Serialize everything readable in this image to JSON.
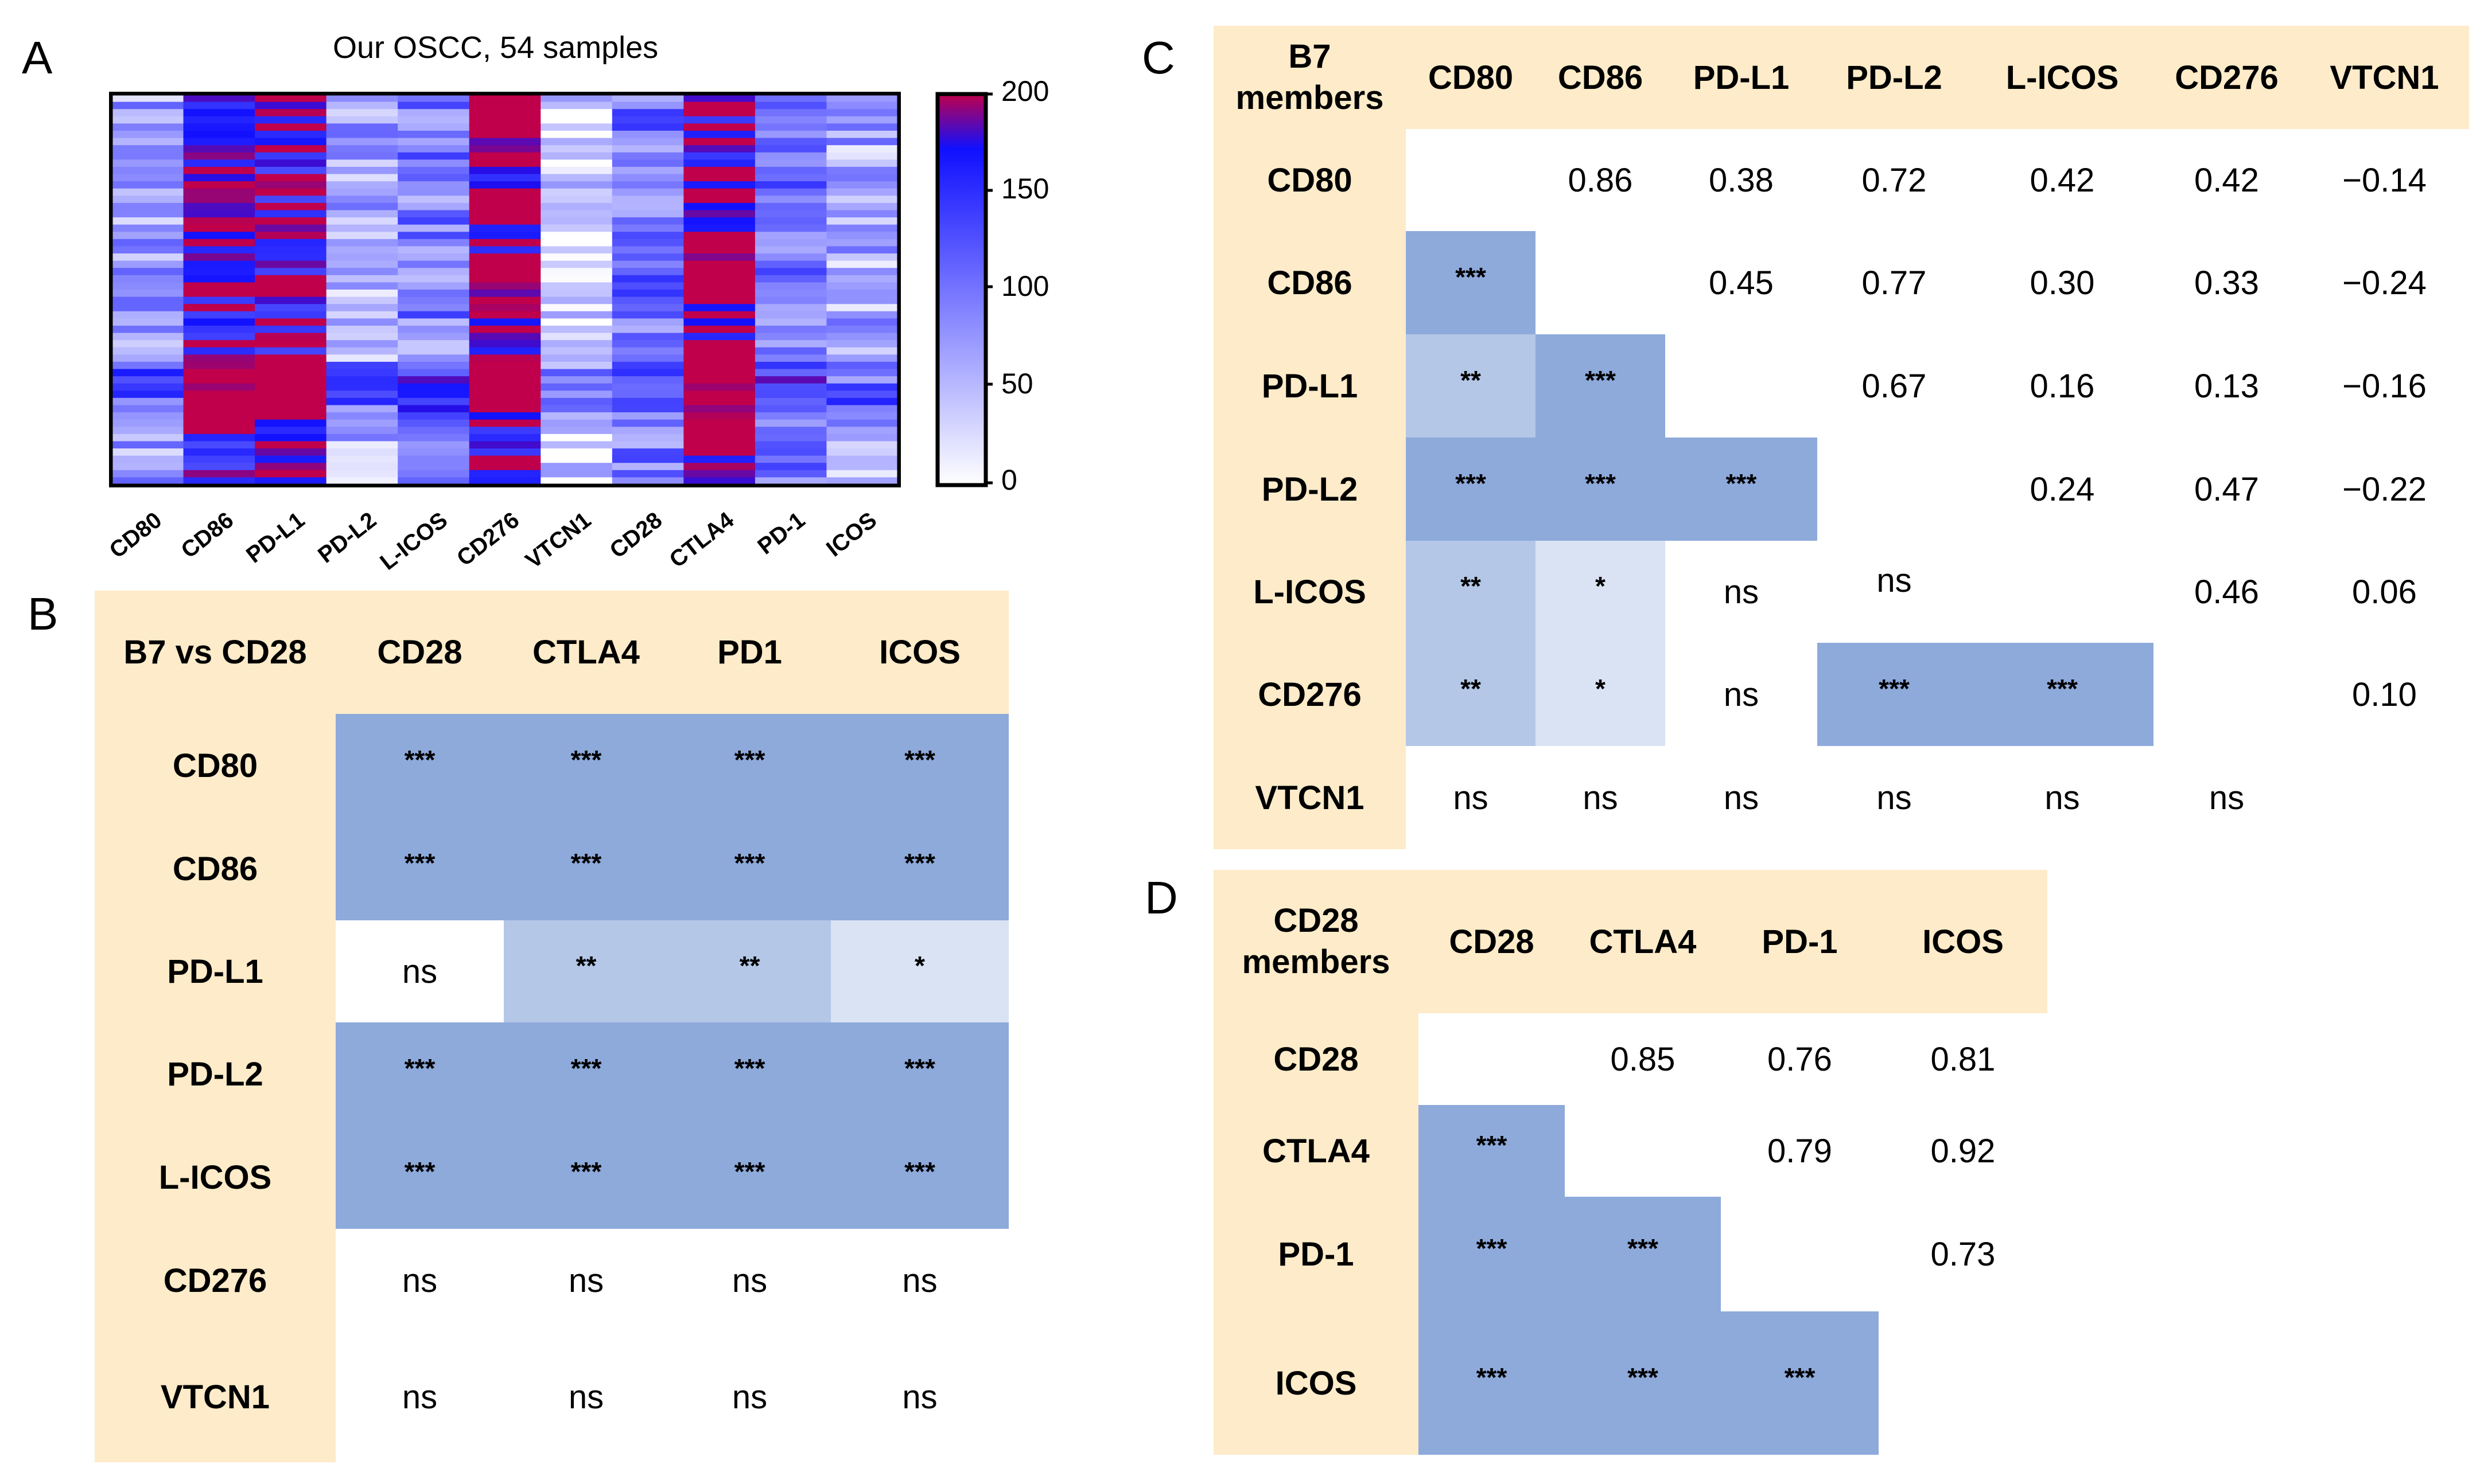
{
  "panels": {
    "a": "A",
    "b": "B",
    "c": "C",
    "d": "D"
  },
  "panel_a": {
    "title": "Our OSCC, 54 samples",
    "genes": [
      "CD80",
      "CD86",
      "PD-L1",
      "PD-L2",
      "L-ICOS",
      "CD276",
      "VTCN1",
      "CD28",
      "CTLA4",
      "PD-1",
      "ICOS"
    ],
    "colorbar": {
      "ticks": [
        "200",
        "150",
        "100",
        "50",
        "0"
      ],
      "colors": [
        "#ffffff",
        "#1010ff",
        "#c0004a"
      ]
    }
  },
  "panel_b": {
    "corner": "B7 vs CD28",
    "columns": [
      "CD28",
      "CTLA4",
      "PD1",
      "ICOS"
    ],
    "rows": [
      {
        "label": "CD80",
        "cells": [
          "***",
          "***",
          "***",
          "***"
        ]
      },
      {
        "label": "CD86",
        "cells": [
          "***",
          "***",
          "***",
          "***"
        ]
      },
      {
        "label": "PD-L1",
        "cells": [
          "ns",
          "**",
          "**",
          "*"
        ]
      },
      {
        "label": "PD-L2",
        "cells": [
          "***",
          "***",
          "***",
          "***"
        ]
      },
      {
        "label": "L-ICOS",
        "cells": [
          "***",
          "***",
          "***",
          "***"
        ]
      },
      {
        "label": "CD276",
        "cells": [
          "ns",
          "ns",
          "ns",
          "ns"
        ]
      },
      {
        "label": "VTCN1",
        "cells": [
          "ns",
          "ns",
          "ns",
          "ns"
        ]
      }
    ]
  },
  "panel_c": {
    "corner": "B7 members",
    "columns": [
      "CD80",
      "CD86",
      "PD-L1",
      "PD-L2",
      "L-ICOS",
      "CD276",
      "VTCN1"
    ],
    "rows": [
      {
        "label": "CD80",
        "cells": [
          "",
          "0.86",
          "0.38",
          "0.72",
          "0.42",
          "0.42",
          "−0.14"
        ]
      },
      {
        "label": "CD86",
        "cells": [
          "***",
          "",
          "0.45",
          "0.77",
          "0.30",
          "0.33",
          "−0.24"
        ]
      },
      {
        "label": "PD-L1",
        "cells": [
          "**",
          "***",
          "",
          "0.67",
          "0.16",
          "0.13",
          "−0.16"
        ]
      },
      {
        "label": "PD-L2",
        "cells": [
          "***",
          "***",
          "***",
          "",
          "0.24",
          "0.47",
          "−0.22"
        ]
      },
      {
        "label": "L-ICOS",
        "cells": [
          "**",
          "*",
          "ns",
          "ns",
          "",
          "0.46",
          "0.06"
        ]
      },
      {
        "label": "CD276",
        "cells": [
          "**",
          "*",
          "ns",
          "***",
          "***",
          "",
          "0.10"
        ]
      },
      {
        "label": "VTCN1",
        "cells": [
          "ns",
          "ns",
          "ns",
          "ns",
          "ns",
          "ns",
          ""
        ]
      }
    ]
  },
  "panel_d": {
    "corner": "CD28 members",
    "columns": [
      "CD28",
      "CTLA4",
      "PD-1",
      "ICOS"
    ],
    "rows": [
      {
        "label": "CD28",
        "cells": [
          "",
          "0.85",
          "0.76",
          "0.81"
        ]
      },
      {
        "label": "CTLA4",
        "cells": [
          "***",
          "",
          "0.79",
          "0.92"
        ]
      },
      {
        "label": "PD-1",
        "cells": [
          "***",
          "***",
          "",
          "0.73"
        ]
      },
      {
        "label": "ICOS",
        "cells": [
          "***",
          "***",
          "***",
          ""
        ]
      }
    ]
  }
}
